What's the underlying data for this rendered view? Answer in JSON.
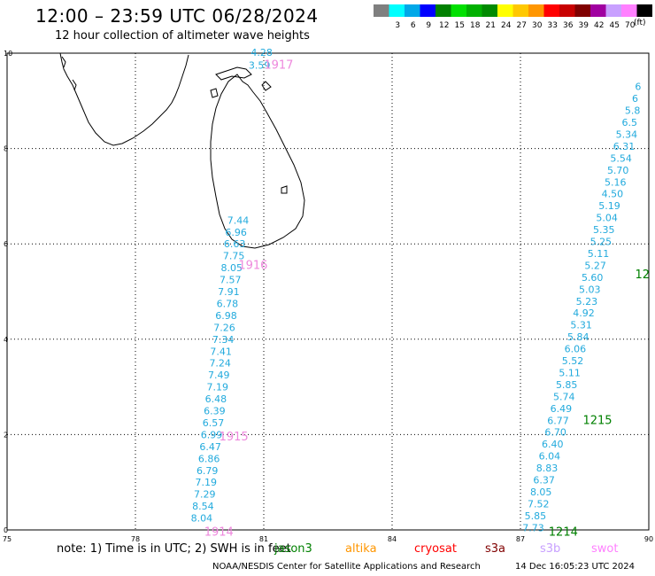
{
  "header": {
    "title": "12:00 – 23:59 UTC 06/28/2024",
    "subtitle": "12 hour collection of altimeter wave heights"
  },
  "scale": {
    "unit": "(ft)",
    "bins": [
      {
        "label": "",
        "color": "#7f7f7f"
      },
      {
        "label": "3",
        "color": "#00ffff"
      },
      {
        "label": "6",
        "color": "#00a8e8"
      },
      {
        "label": "9",
        "color": "#0000ff"
      },
      {
        "label": "12",
        "color": "#008000"
      },
      {
        "label": "15",
        "color": "#00e000"
      },
      {
        "label": "18",
        "color": "#00b000"
      },
      {
        "label": "21",
        "color": "#008a00"
      },
      {
        "label": "24",
        "color": "#ffff00"
      },
      {
        "label": "27",
        "color": "#ffc800"
      },
      {
        "label": "30",
        "color": "#ff9600"
      },
      {
        "label": "33",
        "color": "#ff0000"
      },
      {
        "label": "36",
        "color": "#c80000"
      },
      {
        "label": "39",
        "color": "#800000"
      },
      {
        "label": "42",
        "color": "#a000a0"
      },
      {
        "label": "45",
        "color": "#c8a0ff"
      },
      {
        "label": "70",
        "color": "#ff80ff"
      },
      {
        "label": "",
        "color": "#000000"
      }
    ]
  },
  "axes": {
    "x_ticks": [
      "75",
      "78",
      "81",
      "84",
      "87",
      "90"
    ],
    "y_ticks": [
      "0",
      "2",
      "4",
      "6",
      "8",
      "10"
    ],
    "x_values": [
      75,
      78,
      81,
      84,
      87,
      90
    ],
    "y_values": [
      0,
      2,
      4,
      6,
      8,
      10
    ]
  },
  "colors": {
    "swh_value": "#22aadd",
    "time_label_pass1": "#ee88dd",
    "time_label_pass2": "#008000",
    "coastline": "#000000",
    "grid": "#000000"
  },
  "passes": [
    {
      "id": "pass-1",
      "time_labels": [
        {
          "text": "1917",
          "lon": 81.35,
          "lat": 9.75
        },
        {
          "text": "1916",
          "lon": 80.75,
          "lat": 5.55
        },
        {
          "text": "1915",
          "lon": 80.3,
          "lat": 1.95
        },
        {
          "text": "1914",
          "lon": 79.95,
          "lat": -0.05
        }
      ],
      "points": [
        {
          "v": "4.28",
          "lon": 80.95,
          "lat": 10.02
        },
        {
          "v": "3.59",
          "lon": 80.9,
          "lat": 9.75
        },
        {
          "v": "7.44",
          "lon": 80.4,
          "lat": 6.5
        },
        {
          "v": "6.96",
          "lon": 80.35,
          "lat": 6.25
        },
        {
          "v": "6.63",
          "lon": 80.32,
          "lat": 6.0
        },
        {
          "v": "7.75",
          "lon": 80.3,
          "lat": 5.75
        },
        {
          "v": "8.05",
          "lon": 80.25,
          "lat": 5.5
        },
        {
          "v": "7.57",
          "lon": 80.22,
          "lat": 5.25
        },
        {
          "v": "7.91",
          "lon": 80.18,
          "lat": 5.0
        },
        {
          "v": "6.78",
          "lon": 80.15,
          "lat": 4.75
        },
        {
          "v": "6.98",
          "lon": 80.12,
          "lat": 4.5
        },
        {
          "v": "7.26",
          "lon": 80.08,
          "lat": 4.25
        },
        {
          "v": "7.34",
          "lon": 80.05,
          "lat": 4.0
        },
        {
          "v": "7.41",
          "lon": 80.0,
          "lat": 3.75
        },
        {
          "v": "7.24",
          "lon": 79.98,
          "lat": 3.5
        },
        {
          "v": "7.49",
          "lon": 79.95,
          "lat": 3.25
        },
        {
          "v": "7.19",
          "lon": 79.92,
          "lat": 3.0
        },
        {
          "v": "6.48",
          "lon": 79.88,
          "lat": 2.75
        },
        {
          "v": "6.39",
          "lon": 79.85,
          "lat": 2.5
        },
        {
          "v": "6.57",
          "lon": 79.82,
          "lat": 2.25
        },
        {
          "v": "6.99",
          "lon": 79.78,
          "lat": 2.0
        },
        {
          "v": "6.47",
          "lon": 79.75,
          "lat": 1.75
        },
        {
          "v": "6.86",
          "lon": 79.72,
          "lat": 1.5
        },
        {
          "v": "6.79",
          "lon": 79.68,
          "lat": 1.25
        },
        {
          "v": "7.19",
          "lon": 79.65,
          "lat": 1.0
        },
        {
          "v": "7.29",
          "lon": 79.62,
          "lat": 0.75
        },
        {
          "v": "8.54",
          "lon": 79.58,
          "lat": 0.5
        },
        {
          "v": "8.04",
          "lon": 79.55,
          "lat": 0.25
        }
      ]
    },
    {
      "id": "pass-2",
      "time_labels": [
        {
          "text": "1215",
          "lon": 88.8,
          "lat": 2.3
        },
        {
          "text": "1214",
          "lon": 88.0,
          "lat": -0.05
        },
        {
          "text": "12",
          "lon": 89.85,
          "lat": 5.35
        }
      ],
      "points": [
        {
          "v": "7.73",
          "lon": 87.3,
          "lat": 0.05
        },
        {
          "v": "5.85",
          "lon": 87.35,
          "lat": 0.3
        },
        {
          "v": "7.52",
          "lon": 87.42,
          "lat": 0.55
        },
        {
          "v": "8.05",
          "lon": 87.48,
          "lat": 0.8
        },
        {
          "v": "6.37",
          "lon": 87.55,
          "lat": 1.05
        },
        {
          "v": "8.83",
          "lon": 87.62,
          "lat": 1.3
        },
        {
          "v": "6.04",
          "lon": 87.68,
          "lat": 1.55
        },
        {
          "v": "6.40",
          "lon": 87.75,
          "lat": 1.8
        },
        {
          "v": "6.70",
          "lon": 87.82,
          "lat": 2.05
        },
        {
          "v": "6.77",
          "lon": 87.88,
          "lat": 2.3
        },
        {
          "v": "6.49",
          "lon": 87.95,
          "lat": 2.55
        },
        {
          "v": "5.74",
          "lon": 88.02,
          "lat": 2.8
        },
        {
          "v": "5.85",
          "lon": 88.08,
          "lat": 3.05
        },
        {
          "v": "5.11",
          "lon": 88.15,
          "lat": 3.3
        },
        {
          "v": "5.52",
          "lon": 88.22,
          "lat": 3.55
        },
        {
          "v": "6.06",
          "lon": 88.28,
          "lat": 3.8
        },
        {
          "v": "5.84",
          "lon": 88.35,
          "lat": 4.05
        },
        {
          "v": "5.31",
          "lon": 88.42,
          "lat": 4.3
        },
        {
          "v": "4.92",
          "lon": 88.48,
          "lat": 4.55
        },
        {
          "v": "5.23",
          "lon": 88.55,
          "lat": 4.8
        },
        {
          "v": "5.03",
          "lon": 88.62,
          "lat": 5.05
        },
        {
          "v": "5.60",
          "lon": 88.68,
          "lat": 5.3
        },
        {
          "v": "5.27",
          "lon": 88.75,
          "lat": 5.55
        },
        {
          "v": "5.11",
          "lon": 88.82,
          "lat": 5.8
        },
        {
          "v": "5.25",
          "lon": 88.88,
          "lat": 6.05
        },
        {
          "v": "5.35",
          "lon": 88.95,
          "lat": 6.3
        },
        {
          "v": "5.04",
          "lon": 89.02,
          "lat": 6.55
        },
        {
          "v": "5.19",
          "lon": 89.08,
          "lat": 6.8
        },
        {
          "v": "4.50",
          "lon": 89.15,
          "lat": 7.05
        },
        {
          "v": "5.16",
          "lon": 89.22,
          "lat": 7.3
        },
        {
          "v": "5.70",
          "lon": 89.28,
          "lat": 7.55
        },
        {
          "v": "5.54",
          "lon": 89.35,
          "lat": 7.8
        },
        {
          "v": "6.31",
          "lon": 89.42,
          "lat": 8.05
        },
        {
          "v": "5.34",
          "lon": 89.48,
          "lat": 8.3
        },
        {
          "v": "6.5",
          "lon": 89.55,
          "lat": 8.55
        },
        {
          "v": "5.8",
          "lon": 89.62,
          "lat": 8.8
        },
        {
          "v": "6",
          "lon": 89.68,
          "lat": 9.05
        },
        {
          "v": "6",
          "lon": 89.75,
          "lat": 9.3
        }
      ]
    }
  ],
  "footer": {
    "note": "note:  1) Time is in UTC;  2) SWH is in feet",
    "satellites": [
      {
        "name": "jason3",
        "color": "#008000"
      },
      {
        "name": "altika",
        "color": "#ff9600"
      },
      {
        "name": "cryosat",
        "color": "#ff0000"
      },
      {
        "name": "s3a",
        "color": "#800000"
      },
      {
        "name": "s3b",
        "color": "#c8a0ff"
      },
      {
        "name": "swot",
        "color": "#ff80ff"
      }
    ],
    "credit": "NOAA/NESDIS Center for Satellite Applications and Research",
    "timestamp": "14 Dec 16:05:23 UTC 2024"
  }
}
